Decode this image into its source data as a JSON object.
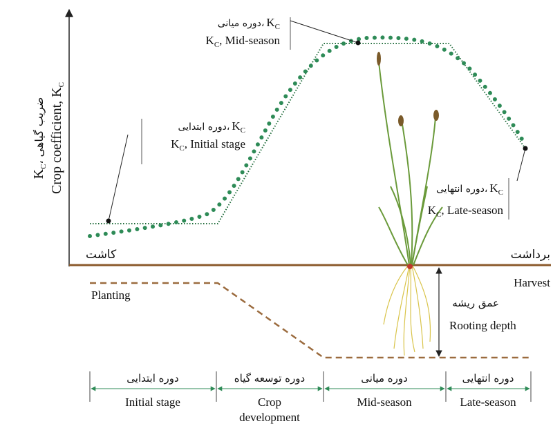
{
  "axis_label": {
    "en": {
      "text": "Crop coefficient, K",
      "sub": "C"
    },
    "fa": {
      "symbol": "K",
      "sub": "C",
      "text": "، ضریب گیاهی"
    }
  },
  "annotations": [
    {
      "fa": "دوره میانی،",
      "symbol": "K",
      "sub": "C",
      "en": ", Mid-season"
    },
    {
      "fa": "دوره ابتدایی،",
      "symbol": "K",
      "sub": "C",
      "en": ", Initial stage"
    },
    {
      "fa": "دوره انتهایی،",
      "symbol": "K",
      "sub": "C",
      "en": ", Late-season"
    }
  ],
  "ground": {
    "planting_fa": "کاشت",
    "harvest_fa": "برداشت",
    "planting_en": "Planting",
    "harvest_en": "Harvest",
    "rooting_fa": "عمق ریشه",
    "rooting_en": "Rooting depth"
  },
  "stages": [
    {
      "fa": "دوره ابتدایی",
      "en": [
        "Initial stage"
      ]
    },
    {
      "fa": "دوره توسعه گیاه",
      "en": [
        "Crop",
        "development"
      ]
    },
    {
      "fa": "دوره میانی",
      "en": [
        "Mid-season"
      ]
    },
    {
      "fa": "دوره انتهایی",
      "en": [
        "Late-season"
      ]
    }
  ]
}
